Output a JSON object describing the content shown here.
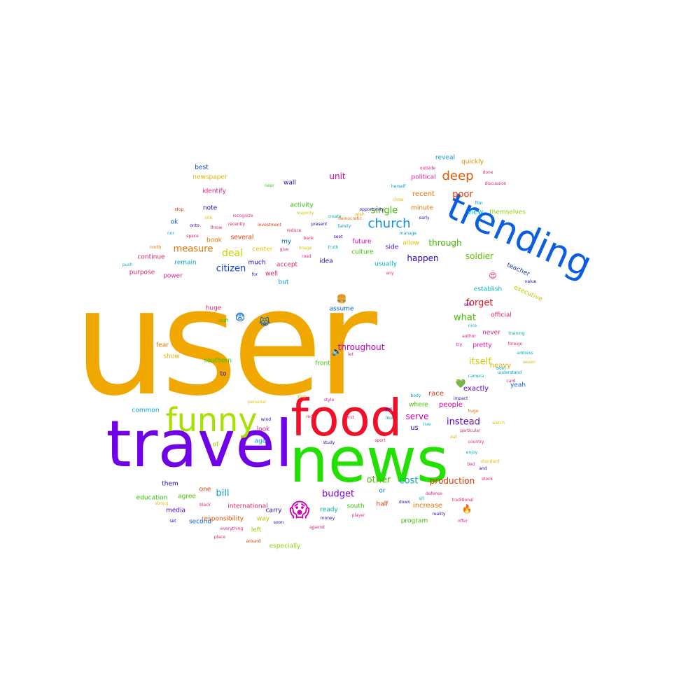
{
  "words": [
    {
      "text": "user",
      "color": "#f0a800"
    },
    {
      "text": "trending",
      "color": "#0a5fe0"
    },
    {
      "text": "travel",
      "color": "#7000e8"
    },
    {
      "text": "news",
      "color": "#22e000"
    },
    {
      "text": "food",
      "color": "#f0102a"
    },
    {
      "text": "funny",
      "color": "#a8e000"
    },
    {
      "text": "deep",
      "color": "#e05800"
    },
    {
      "text": "church",
      "color": "#0a8fe0"
    },
    {
      "text": "unit",
      "color": "#d000a0"
    },
    {
      "text": "throughout",
      "color": "#c000c0"
    },
    {
      "text": "production",
      "color": "#e03000"
    },
    {
      "text": "measure",
      "color": "#e07000"
    },
    {
      "text": "citizen",
      "color": "#1040e0"
    },
    {
      "text": "happen",
      "color": "#3000c0"
    },
    {
      "text": "deal",
      "color": "#c8d000"
    },
    {
      "text": "instead",
      "color": "#5000e0"
    },
    {
      "text": "budget",
      "color": "#8000d0"
    },
    {
      "text": "cost",
      "color": "#00a8c0"
    },
    {
      "text": "bill",
      "color": "#00a0d0"
    },
    {
      "text": "single",
      "color": "#40c000"
    },
    {
      "text": "poor",
      "color": "#e03000"
    },
    {
      "text": "forget",
      "color": "#f0102a"
    },
    {
      "text": "itself",
      "color": "#d0d000"
    },
    {
      "text": "soldier",
      "color": "#60c000"
    },
    {
      "text": "through",
      "color": "#40b800"
    },
    {
      "text": "what",
      "color": "#50c000"
    },
    {
      "text": "serve",
      "color": "#d000b0"
    },
    {
      "text": "view",
      "color": "#00b0d0"
    },
    {
      "text": "recent",
      "color": "#f07000"
    },
    {
      "text": "quickly",
      "color": "#e09000"
    },
    {
      "text": "reveal",
      "color": "#00a0d0"
    },
    {
      "text": "political",
      "color": "#e0209a"
    },
    {
      "text": "minute",
      "color": "#f07000"
    },
    {
      "text": "themselves",
      "color": "#90d000"
    },
    {
      "text": "teacher",
      "color": "#1040b0"
    },
    {
      "text": "executive",
      "color": "#d0c000"
    },
    {
      "text": "establish",
      "color": "#00b0c0"
    },
    {
      "text": "official",
      "color": "#e02060"
    },
    {
      "text": "heavy",
      "color": "#e0b000"
    },
    {
      "text": "pretty",
      "color": "#e000b0"
    },
    {
      "text": "never",
      "color": "#e02080"
    },
    {
      "text": "exactly",
      "color": "#6000c0"
    },
    {
      "text": "yeah",
      "color": "#1060d0"
    },
    {
      "text": "race",
      "color": "#e03000"
    },
    {
      "text": "people",
      "color": "#e000a0"
    },
    {
      "text": "where",
      "color": "#40c000"
    },
    {
      "text": "us",
      "color": "#3000b0"
    },
    {
      "text": "other",
      "color": "#40c000"
    },
    {
      "text": "or",
      "color": "#0070e0"
    },
    {
      "text": "ready",
      "color": "#00b0a0"
    },
    {
      "text": "south",
      "color": "#40c000"
    },
    {
      "text": "half",
      "color": "#e03000"
    },
    {
      "text": "increase",
      "color": "#f07000"
    },
    {
      "text": "program",
      "color": "#40c000"
    },
    {
      "text": "carry",
      "color": "#3000b0"
    },
    {
      "text": "international",
      "color": "#e02060"
    },
    {
      "text": "responsibility",
      "color": "#e05000"
    },
    {
      "text": "way",
      "color": "#c0c000"
    },
    {
      "text": "left",
      "color": "#90d000"
    },
    {
      "text": "especially",
      "color": "#90d000"
    },
    {
      "text": "second",
      "color": "#0060d0"
    },
    {
      "text": "media",
      "color": "#5000c0"
    },
    {
      "text": "agree",
      "color": "#40c000"
    },
    {
      "text": "education",
      "color": "#30c000"
    },
    {
      "text": "them",
      "color": "#3000b0"
    },
    {
      "text": "one",
      "color": "#e03000"
    },
    {
      "text": "common",
      "color": "#00a0d0"
    },
    {
      "text": "of",
      "color": "#90d000"
    },
    {
      "text": "ago",
      "color": "#00a0d0"
    },
    {
      "text": "look",
      "color": "#e02080"
    },
    {
      "text": "front",
      "color": "#40c000"
    },
    {
      "text": "southern",
      "color": "#30c000"
    },
    {
      "text": "to",
      "color": "#3000b0"
    },
    {
      "text": "show",
      "color": "#e0b000"
    },
    {
      "text": "fear",
      "color": "#e07000"
    },
    {
      "text": "huge",
      "color": "#e02060"
    },
    {
      "text": "assume",
      "color": "#0060d0"
    },
    {
      "text": "but",
      "color": "#00a0d0"
    },
    {
      "text": "well",
      "color": "#e02060"
    },
    {
      "text": "accept",
      "color": "#e02060"
    },
    {
      "text": "much",
      "color": "#3000b0"
    },
    {
      "text": "center",
      "color": "#e0c000"
    },
    {
      "text": "remain",
      "color": "#00a8c0"
    },
    {
      "text": "power",
      "color": "#e0209a"
    },
    {
      "text": "purpose",
      "color": "#e02060"
    },
    {
      "text": "continue",
      "color": "#e02060"
    },
    {
      "text": "ok",
      "color": "#0060d0"
    },
    {
      "text": "note",
      "color": "#3000b0"
    },
    {
      "text": "book",
      "color": "#e07000"
    },
    {
      "text": "several",
      "color": "#e03000"
    },
    {
      "text": "idea",
      "color": "#3000b0"
    },
    {
      "text": "usually",
      "color": "#00b0c0"
    },
    {
      "text": "side",
      "color": "#5000c0"
    },
    {
      "text": "culture",
      "color": "#40c000"
    },
    {
      "text": "future",
      "color": "#e000b0"
    },
    {
      "text": "allow",
      "color": "#e0c000"
    },
    {
      "text": "my",
      "color": "#0060d0"
    },
    {
      "text": "activity",
      "color": "#30c000"
    },
    {
      "text": "wall",
      "color": "#3000b0"
    },
    {
      "text": "best",
      "color": "#1040b0"
    },
    {
      "text": "newspaper",
      "color": "#e0b000"
    },
    {
      "text": "identify",
      "color": "#e02080"
    },
    {
      "text": "stop",
      "color": "#e03000"
    },
    {
      "text": "site",
      "color": "#e0c000"
    },
    {
      "text": "onto",
      "color": "#3000b0"
    },
    {
      "text": "throw",
      "color": "#e02060"
    },
    {
      "text": "recognize",
      "color": "#e02080"
    },
    {
      "text": "recently",
      "color": "#e02060"
    },
    {
      "text": "investment",
      "color": "#e03000"
    },
    {
      "text": "reduce",
      "color": "#e02060"
    },
    {
      "text": "present",
      "color": "#3000b0"
    },
    {
      "text": "near",
      "color": "#40c000"
    },
    {
      "text": "majority",
      "color": "#e0c000"
    },
    {
      "text": "create",
      "color": "#00b0c0"
    },
    {
      "text": "democratic",
      "color": "#e07000"
    },
    {
      "text": "opportunity",
      "color": "#3000b0"
    },
    {
      "text": "wish",
      "color": "#e0b000"
    },
    {
      "text": "family",
      "color": "#00a0c0"
    },
    {
      "text": "seat",
      "color": "#3000b0"
    },
    {
      "text": "truth",
      "color": "#00b0c0"
    },
    {
      "text": "herself",
      "color": "#00a0d0"
    },
    {
      "text": "close",
      "color": "#e0b000"
    },
    {
      "text": "early",
      "color": "#3000b0"
    },
    {
      "text": "manage",
      "color": "#00a0d0"
    },
    {
      "text": "outside",
      "color": "#e02080"
    },
    {
      "text": "born",
      "color": "#00a0d0"
    },
    {
      "text": "discussion",
      "color": "#e02080"
    },
    {
      "text": "done",
      "color": "#e02060"
    },
    {
      "text": "film",
      "color": "#00a0d0"
    },
    {
      "text": "space",
      "color": "#e02060"
    },
    {
      "text": "nor",
      "color": "#00b0c0"
    },
    {
      "text": "north",
      "color": "#f07000"
    },
    {
      "text": "give",
      "color": "#e02080"
    },
    {
      "text": "image",
      "color": "#e0c000"
    },
    {
      "text": "bank",
      "color": "#e02060"
    },
    {
      "text": "push",
      "color": "#00b0c0"
    },
    {
      "text": "for",
      "color": "#3000b0"
    },
    {
      "text": "road",
      "color": "#e02080"
    },
    {
      "text": "any",
      "color": "#e02080"
    },
    {
      "text": "stuff",
      "color": "#30c000"
    },
    {
      "text": "let",
      "color": "#e02080"
    },
    {
      "text": "sell",
      "color": "#3000b0"
    },
    {
      "text": "nice",
      "color": "#00b0c0"
    },
    {
      "text": "foreign",
      "color": "#e02080"
    },
    {
      "text": "training",
      "color": "#00b0a0"
    },
    {
      "text": "author",
      "color": "#e02080"
    },
    {
      "text": "try",
      "color": "#e000b0"
    },
    {
      "text": "address",
      "color": "#00b0c0"
    },
    {
      "text": "seven",
      "color": "#e0b000"
    },
    {
      "text": "value",
      "color": "#3000b0"
    },
    {
      "text": "understand",
      "color": "#00a0d0"
    },
    {
      "text": "camera",
      "color": "#00b0c0"
    },
    {
      "text": "card",
      "color": "#e02080"
    },
    {
      "text": "impact",
      "color": "#3000b0"
    },
    {
      "text": "body",
      "color": "#00a0c0"
    },
    {
      "text": "style",
      "color": "#e02080"
    },
    {
      "text": "stop",
      "color": "#e0c000"
    },
    {
      "text": "personal",
      "color": "#e0c000"
    },
    {
      "text": "wind",
      "color": "#3000b0"
    },
    {
      "text": "red",
      "color": "#e02060"
    },
    {
      "text": "gun",
      "color": "#3000b0"
    },
    {
      "text": "first",
      "color": "#e02080"
    },
    {
      "text": "like",
      "color": "#00a0c0"
    },
    {
      "text": "huge",
      "color": "#e07000"
    },
    {
      "text": "sell",
      "color": "#e0b000"
    },
    {
      "text": "study",
      "color": "#3000b0"
    },
    {
      "text": "live",
      "color": "#00b0c0"
    },
    {
      "text": "particular",
      "color": "#e02060"
    },
    {
      "text": "watch",
      "color": "#e0c000"
    },
    {
      "text": "country",
      "color": "#e02080"
    },
    {
      "text": "enjoy",
      "color": "#00b0c0"
    },
    {
      "text": "standard",
      "color": "#e0c000"
    },
    {
      "text": "bed",
      "color": "#e02080"
    },
    {
      "text": "and",
      "color": "#3000b0"
    },
    {
      "text": "stock",
      "color": "#e02060"
    },
    {
      "text": "strong",
      "color": "#e0c000"
    },
    {
      "text": "black",
      "color": "#e02080"
    },
    {
      "text": "set",
      "color": "#3000b0"
    },
    {
      "text": "everything",
      "color": "#e02080"
    },
    {
      "text": "place",
      "color": "#e02060"
    },
    {
      "text": "soon",
      "color": "#3000b0"
    },
    {
      "text": "around",
      "color": "#e03000"
    },
    {
      "text": "against",
      "color": "#e02080"
    },
    {
      "text": "money",
      "color": "#3000b0"
    },
    {
      "text": "player",
      "color": "#e0209a"
    },
    {
      "text": "down",
      "color": "#3000b0"
    },
    {
      "text": "sit",
      "color": "#00a0c0"
    },
    {
      "text": "defense",
      "color": "#e02080"
    },
    {
      "text": "traditional",
      "color": "#e02080"
    },
    {
      "text": "offer",
      "color": "#e0209a"
    },
    {
      "text": "reality",
      "color": "#3000b0"
    },
    {
      "text": "eat",
      "color": "#e0b000"
    },
    {
      "text": "sport",
      "color": "#e02060"
    }
  ],
  "emojis": [
    {
      "icon": "screaming-face-icon",
      "glyph": "😱",
      "color": "#d000b0"
    },
    {
      "icon": "smiling-face-with-heart-eyes-icon",
      "glyph": "😍",
      "color": "#e02060"
    },
    {
      "icon": "fearful-face-icon",
      "glyph": "😨",
      "color": "#0060d0"
    },
    {
      "icon": "face-with-tears-icon",
      "glyph": "😹",
      "color": "#0060d0"
    },
    {
      "icon": "loudspeaker-icon",
      "glyph": "🔈",
      "color": "#e000b0"
    },
    {
      "icon": "fire-icon",
      "glyph": "🔥",
      "color": "#6000c0"
    },
    {
      "icon": "heart-icon",
      "glyph": "💚",
      "color": "#00b0c0"
    },
    {
      "icon": "burger-icon",
      "glyph": "🍔",
      "color": "#e0b000"
    }
  ]
}
